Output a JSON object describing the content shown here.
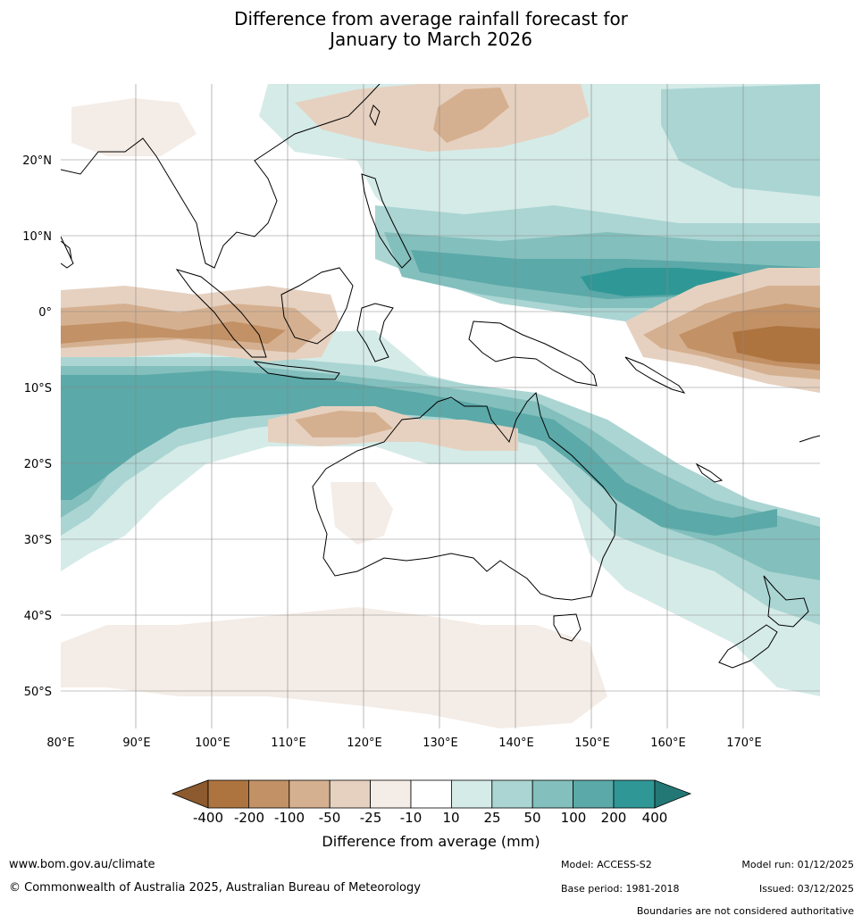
{
  "title_line1": "Difference from average rainfall forecast for",
  "title_line2": "January to March 2026",
  "map": {
    "lat_labels": [
      "20°N",
      "10°N",
      "0°",
      "10°S",
      "20°S",
      "30°S",
      "40°S",
      "50°S"
    ],
    "lon_labels": [
      "80°E",
      "90°E",
      "100°E",
      "110°E",
      "120°E",
      "130°E",
      "140°E",
      "150°E",
      "160°E",
      "170°E"
    ]
  },
  "colorbar": {
    "title": "Difference from average (mm)",
    "ticks": [
      "-400",
      "-200",
      "-100",
      "-50",
      "-25",
      "-10",
      "10",
      "25",
      "50",
      "100",
      "200",
      "400"
    ],
    "colors": {
      "under": "#8c5a2e",
      "b1": "#ad7440",
      "b2": "#c29165",
      "b3": "#d5b090",
      "b4": "#e6d1c0",
      "b5": "#f4ece6",
      "b6": "#ffffff",
      "b7": "#d5ebe8",
      "b8": "#aad5d3",
      "b9": "#82bfbd",
      "b10": "#5ba9a8",
      "b11": "#2f9896",
      "over": "#237875"
    }
  },
  "footer": {
    "url": "www.bom.gov.au/climate",
    "copyright": "© Commonwealth of Australia 2025, Australian Bureau of Meteorology",
    "model": "Model: ACCESS-S2",
    "base_period": "Base period: 1981-2018",
    "model_run": "Model run: 01/12/2025",
    "issued": "Issued: 03/12/2025",
    "boundaries": "Boundaries are not considered authoritative"
  }
}
